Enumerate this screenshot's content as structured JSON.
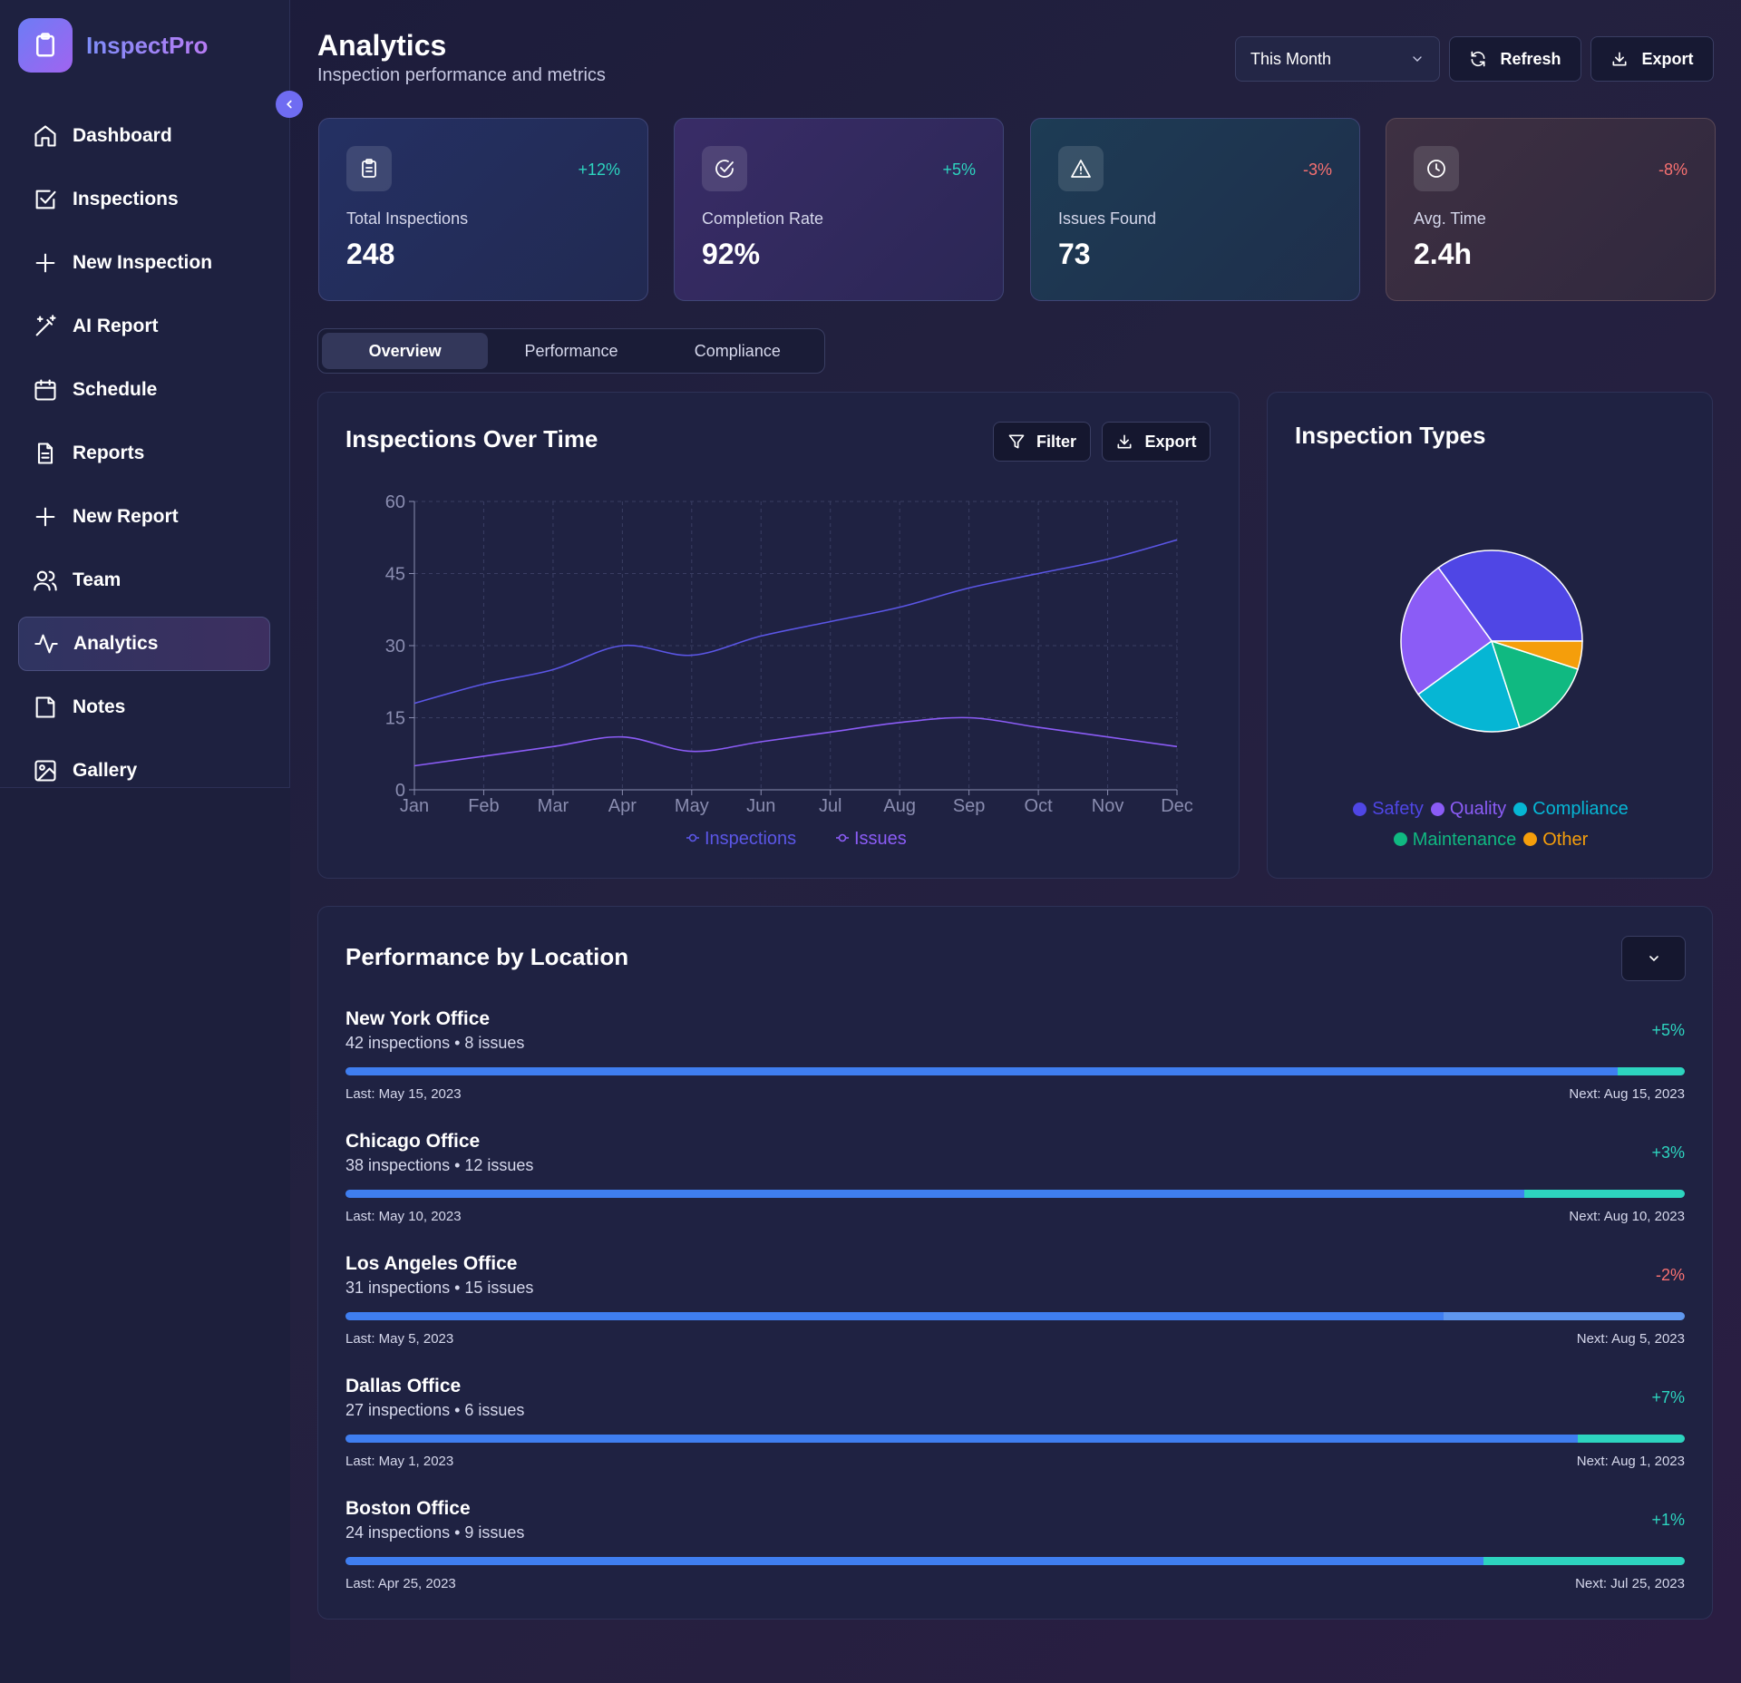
{
  "brand": {
    "name": "InspectPro"
  },
  "nav": {
    "items": [
      {
        "label": "Dashboard",
        "icon": "home-icon"
      },
      {
        "label": "Inspections",
        "icon": "checkbox-icon"
      },
      {
        "label": "New Inspection",
        "icon": "plus-icon"
      },
      {
        "label": "AI Report",
        "icon": "magic-wand-icon"
      },
      {
        "label": "Schedule",
        "icon": "calendar-icon"
      },
      {
        "label": "Reports",
        "icon": "document-icon"
      },
      {
        "label": "New Report",
        "icon": "plus-icon"
      },
      {
        "label": "Team",
        "icon": "users-icon"
      },
      {
        "label": "Analytics",
        "icon": "activity-icon",
        "active": true
      },
      {
        "label": "Notes",
        "icon": "note-icon"
      },
      {
        "label": "Gallery",
        "icon": "image-icon"
      }
    ]
  },
  "header": {
    "title": "Analytics",
    "subtitle": "Inspection performance and metrics",
    "period_select": "This Month",
    "refresh_label": "Refresh",
    "export_label": "Export"
  },
  "stats": [
    {
      "label": "Total Inspections",
      "value": "248",
      "change": "+12%",
      "trend": "up",
      "icon": "clipboard-icon"
    },
    {
      "label": "Completion Rate",
      "value": "92%",
      "change": "+5%",
      "trend": "up",
      "icon": "check-circle-icon"
    },
    {
      "label": "Issues Found",
      "value": "73",
      "change": "-3%",
      "trend": "down",
      "icon": "warning-icon"
    },
    {
      "label": "Avg. Time",
      "value": "2.4h",
      "change": "-8%",
      "trend": "down",
      "icon": "clock-icon"
    }
  ],
  "tabs": [
    {
      "label": "Overview",
      "active": true
    },
    {
      "label": "Performance",
      "active": false
    },
    {
      "label": "Compliance",
      "active": false
    }
  ],
  "line_panel": {
    "title": "Inspections Over Time",
    "filter_label": "Filter",
    "export_label": "Export"
  },
  "pie_panel": {
    "title": "Inspection Types"
  },
  "colors": {
    "accent": "#6f6cf2",
    "positive": "#2dd4bf",
    "negative": "#f87171",
    "bar_fill": "#3f7ef0"
  },
  "chart_data": [
    {
      "type": "line",
      "x": [
        "Jan",
        "Feb",
        "Mar",
        "Apr",
        "May",
        "Jun",
        "Jul",
        "Aug",
        "Sep",
        "Oct",
        "Nov",
        "Dec"
      ],
      "series": [
        {
          "name": "Inspections",
          "color": "#5b56e6",
          "values": [
            18,
            22,
            25,
            30,
            28,
            32,
            35,
            38,
            42,
            45,
            48,
            52
          ]
        },
        {
          "name": "Issues",
          "color": "#8b5cf6",
          "values": [
            5,
            7,
            9,
            11,
            8,
            10,
            12,
            14,
            15,
            13,
            11,
            9
          ]
        }
      ],
      "yticks": [
        0,
        15,
        30,
        45,
        60
      ],
      "ylim": [
        0,
        60
      ],
      "grid": true,
      "legend": "bottom-center"
    },
    {
      "type": "pie",
      "categories": [
        "Safety",
        "Quality",
        "Compliance",
        "Maintenance",
        "Other"
      ],
      "values": [
        35,
        25,
        20,
        15,
        5
      ],
      "colors": [
        "#4f46e5",
        "#8b5cf6",
        "#06b6d4",
        "#10b981",
        "#f59e0b"
      ],
      "legend": "bottom-center"
    }
  ],
  "locations_panel": {
    "title": "Performance by Location",
    "items": [
      {
        "name": "New York Office",
        "inspections": "42 inspections",
        "issues": "8 issues",
        "change": "+5%",
        "trend": "up",
        "progress": 0.95,
        "last": "Last: May 15, 2023",
        "next": "Next: Aug 15, 2023"
      },
      {
        "name": "Chicago Office",
        "inspections": "38 inspections",
        "issues": "12 issues",
        "change": "+3%",
        "trend": "up",
        "progress": 0.88,
        "last": "Last: May 10, 2023",
        "next": "Next: Aug 10, 2023"
      },
      {
        "name": "Los Angeles Office",
        "inspections": "31 inspections",
        "issues": "15 issues",
        "change": "-2%",
        "trend": "down",
        "progress": 0.82,
        "last": "Last: May 5, 2023",
        "next": "Next: Aug 5, 2023"
      },
      {
        "name": "Dallas Office",
        "inspections": "27 inspections",
        "issues": "6 issues",
        "change": "+7%",
        "trend": "up",
        "progress": 0.92,
        "last": "Last: May 1, 2023",
        "next": "Next: Aug 1, 2023"
      },
      {
        "name": "Boston Office",
        "inspections": "24 inspections",
        "issues": "9 issues",
        "change": "+1%",
        "trend": "up",
        "progress": 0.85,
        "last": "Last: Apr 25, 2023",
        "next": "Next: Jul 25, 2023"
      }
    ]
  }
}
